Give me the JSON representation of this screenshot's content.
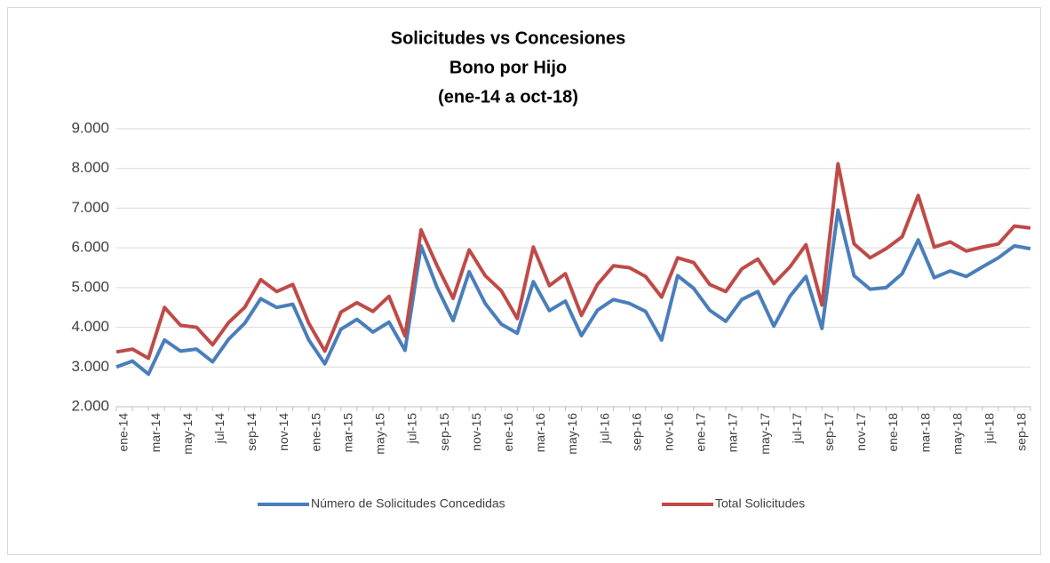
{
  "chart_data": {
    "type": "line",
    "title": [
      "Solicitudes vs Concesiones",
      "Bono por Hijo",
      "(ene-14 a oct-18)"
    ],
    "categories": [
      "ene-14",
      null,
      "mar-14",
      null,
      "may-14",
      null,
      "jul-14",
      null,
      "sep-14",
      null,
      "nov-14",
      null,
      "ene-15",
      null,
      "mar-15",
      null,
      "may-15",
      null,
      "jul-15",
      null,
      "sep-15",
      null,
      "nov-15",
      null,
      "ene-16",
      null,
      "mar-16",
      null,
      "may-16",
      null,
      "jul-16",
      null,
      "sep-16",
      null,
      "nov-16",
      null,
      "ene-17",
      null,
      "mar-17",
      null,
      "may-17",
      null,
      "jul-17",
      null,
      "sep-17",
      null,
      "nov-17",
      null,
      "ene-18",
      null,
      "mar-18",
      null,
      "may-18",
      null,
      "jul-18",
      null,
      "sep-18",
      null
    ],
    "series": [
      {
        "name": "Número de Solicitudes Concedidas",
        "color": "#4a7ebb",
        "values": [
          3000,
          3150,
          2820,
          3680,
          3400,
          3450,
          3130,
          3700,
          4100,
          4720,
          4500,
          4580,
          3680,
          3080,
          3950,
          4200,
          3880,
          4130,
          3420,
          6050,
          5000,
          4170,
          5400,
          4600,
          4080,
          3850,
          5150,
          4420,
          4660,
          3790,
          4430,
          4700,
          4600,
          4400,
          3680,
          5300,
          4980,
          4430,
          4150,
          4700,
          4900,
          4030,
          4780,
          5280,
          3970,
          6950,
          5300,
          4960,
          5000,
          5350,
          6200,
          5250,
          5420,
          5280,
          5520,
          5750,
          6050,
          5980
        ]
      },
      {
        "name": "Total Solicitudes",
        "color": "#be4b48",
        "values": [
          3380,
          3450,
          3220,
          4500,
          4050,
          4000,
          3560,
          4120,
          4500,
          5200,
          4900,
          5080,
          4100,
          3400,
          4380,
          4620,
          4400,
          4780,
          3780,
          6450,
          5550,
          4730,
          5950,
          5300,
          4920,
          4220,
          6020,
          5050,
          5350,
          4300,
          5080,
          5550,
          5500,
          5280,
          4760,
          5750,
          5630,
          5080,
          4900,
          5470,
          5720,
          5100,
          5520,
          6080,
          4560,
          8120,
          6100,
          5750,
          5980,
          6280,
          7320,
          6020,
          6150,
          5920,
          6020,
          6100,
          6550,
          6500
        ]
      }
    ],
    "ylim": [
      2000,
      9000
    ],
    "yticks": [
      {
        "value": 2000,
        "label": "2.000"
      },
      {
        "value": 3000,
        "label": "3.000"
      },
      {
        "value": 4000,
        "label": "4.000"
      },
      {
        "value": 5000,
        "label": "5.000"
      },
      {
        "value": 6000,
        "label": "6.000"
      },
      {
        "value": 7000,
        "label": "7.000"
      },
      {
        "value": 8000,
        "label": "8.000"
      },
      {
        "value": 9000,
        "label": "9.000"
      }
    ],
    "grid": true,
    "legend": "bottom"
  }
}
